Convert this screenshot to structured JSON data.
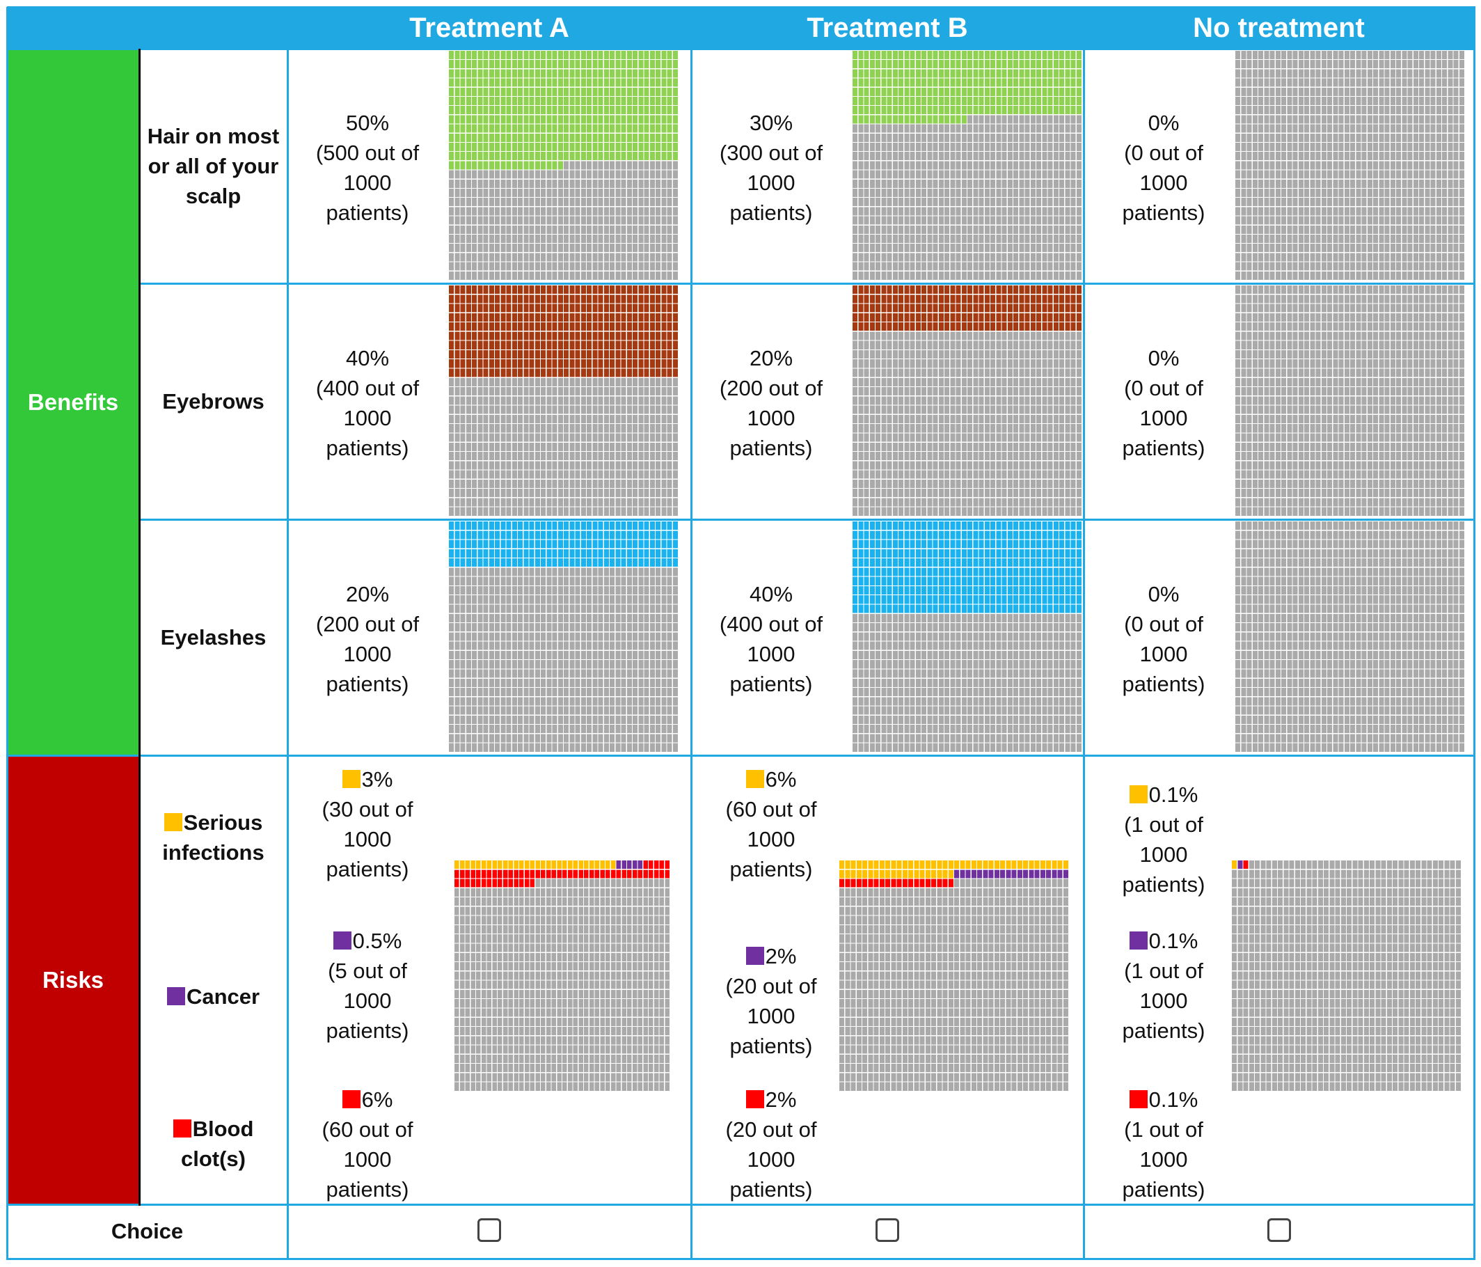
{
  "colors": {
    "header": "#1fa8e2",
    "benefits": "#33c83a",
    "risks": "#c00000",
    "grey": "#aaaaaa",
    "hair": "#8fd150",
    "eyebrows": "#a53a12",
    "eyelashes": "#1ab3f0",
    "infection": "#ffc000",
    "cancer": "#7030a0",
    "clot": "#ff0000"
  },
  "columns": [
    "Treatment A",
    "Treatment B",
    "No treatment"
  ],
  "categories": {
    "benefits": "Benefits",
    "risks": "Risks"
  },
  "benefit_rows": [
    {
      "label": "Hair on most or all of your scalp",
      "color_key": "hair",
      "cells": [
        {
          "pct": "50%",
          "detail": "(500 out of 1000 patients)",
          "count": 500
        },
        {
          "pct": "30%",
          "detail": "(300 out of 1000 patients)",
          "count": 300
        },
        {
          "pct": "0%",
          "detail": "(0 out of 1000 patients)",
          "count": 0
        }
      ]
    },
    {
      "label": "Eyebrows",
      "color_key": "eyebrows",
      "cells": [
        {
          "pct": "40%",
          "detail": "(400 out of 1000 patients)",
          "count": 400
        },
        {
          "pct": "20%",
          "detail": "(200 out of 1000 patients)",
          "count": 200
        },
        {
          "pct": "0%",
          "detail": "(0 out of 1000 patients)",
          "count": 0
        }
      ]
    },
    {
      "label": "Eyelashes",
      "color_key": "eyelashes",
      "cells": [
        {
          "pct": "20%",
          "detail": "(200 out of 1000 patients)",
          "count": 200
        },
        {
          "pct": "40%",
          "detail": "(400 out of 1000 patients)",
          "count": 400
        },
        {
          "pct": "0%",
          "detail": "(0 out of 1000 patients)",
          "count": 0
        }
      ]
    }
  ],
  "risk_labels": [
    {
      "label": "Serious infections",
      "color_key": "infection"
    },
    {
      "label": "Cancer",
      "color_key": "cancer"
    },
    {
      "label": "Blood clot(s)",
      "color_key": "clot"
    }
  ],
  "risk_columns": [
    {
      "items": [
        {
          "pct": "3%",
          "detail": "(30 out of 1000 patients)",
          "count": 30,
          "color_key": "infection"
        },
        {
          "pct": "0.5%",
          "detail": "(5 out of 1000 patients)",
          "count": 5,
          "color_key": "cancer"
        },
        {
          "pct": "6%",
          "detail": "(60 out of 1000 patients)",
          "count": 60,
          "color_key": "clot"
        }
      ]
    },
    {
      "items": [
        {
          "pct": "6%",
          "detail": "(60 out of 1000 patients)",
          "count": 60,
          "color_key": "infection"
        },
        {
          "pct": "2%",
          "detail": "(20 out of 1000 patients)",
          "count": 20,
          "color_key": "cancer"
        },
        {
          "pct": "2%",
          "detail": "(20 out of 1000 patients)",
          "count": 20,
          "color_key": "clot"
        }
      ]
    },
    {
      "items": [
        {
          "pct": "0.1%",
          "detail": "(1 out of 1000 patients)",
          "count": 1,
          "color_key": "infection"
        },
        {
          "pct": "0.1%",
          "detail": "(1 out of 1000 patients)",
          "count": 1,
          "color_key": "cancer"
        },
        {
          "pct": "0.1%",
          "detail": "(1 out of 1000 patients)",
          "count": 1,
          "color_key": "clot"
        }
      ]
    }
  ],
  "choice_label": "Choice"
}
